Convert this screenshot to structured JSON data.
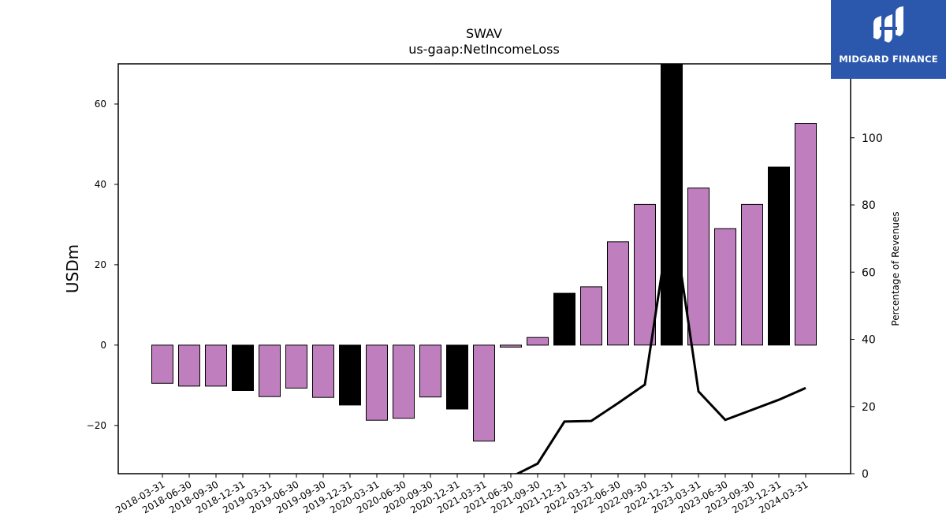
{
  "chart_data": {
    "type": "bar",
    "title": "SWAV",
    "subtitle": "us-gaap:NetIncomeLoss",
    "ylabel": "USDm",
    "y2label": "Percentage of Revenues",
    "ylim": [
      -32,
      70
    ],
    "y2lim": [
      0,
      122
    ],
    "yticks": [
      -20,
      0,
      20,
      40,
      60
    ],
    "y2ticks": [
      0,
      20,
      40,
      60,
      80,
      100
    ],
    "categories": [
      "2018-03-31",
      "2018-06-30",
      "2018-09-30",
      "2018-12-31",
      "2019-03-31",
      "2019-06-30",
      "2019-09-30",
      "2019-12-31",
      "2020-03-31",
      "2020-06-30",
      "2020-09-30",
      "2020-12-31",
      "2021-03-31",
      "2021-06-30",
      "2021-09-30",
      "2021-12-31",
      "2022-03-31",
      "2022-06-30",
      "2022-09-30",
      "2022-12-31",
      "2023-03-31",
      "2023-06-30",
      "2023-09-30",
      "2023-12-31",
      "2024-03-31"
    ],
    "values": [
      -9.5,
      -10.2,
      -10.2,
      -11.3,
      -12.8,
      -10.7,
      -13.0,
      -14.9,
      -18.7,
      -18.2,
      -12.9,
      -15.9,
      -23.9,
      -0.5,
      1.9,
      12.9,
      14.5,
      25.7,
      35.0,
      70.0,
      39.1,
      29.0,
      35.0,
      44.3,
      55.2
    ],
    "highlight": [
      false,
      false,
      false,
      true,
      false,
      false,
      false,
      true,
      false,
      false,
      false,
      true,
      false,
      false,
      false,
      true,
      false,
      false,
      false,
      true,
      false,
      false,
      false,
      true,
      false
    ],
    "series": [
      {
        "type": "line",
        "axis": "right",
        "values": [
          null,
          null,
          null,
          null,
          null,
          null,
          null,
          null,
          null,
          null,
          null,
          null,
          null,
          -1.0,
          3.0,
          15.5,
          15.7,
          21.0,
          26.5,
          79.0,
          24.5,
          16.0,
          19.0,
          22.0,
          25.5
        ]
      }
    ],
    "colors": {
      "bar": "#bf7fbf",
      "highlight": "#000000",
      "line": "#000000"
    },
    "grid": false
  },
  "logo": {
    "text": "MIDGARD FINANCE"
  }
}
